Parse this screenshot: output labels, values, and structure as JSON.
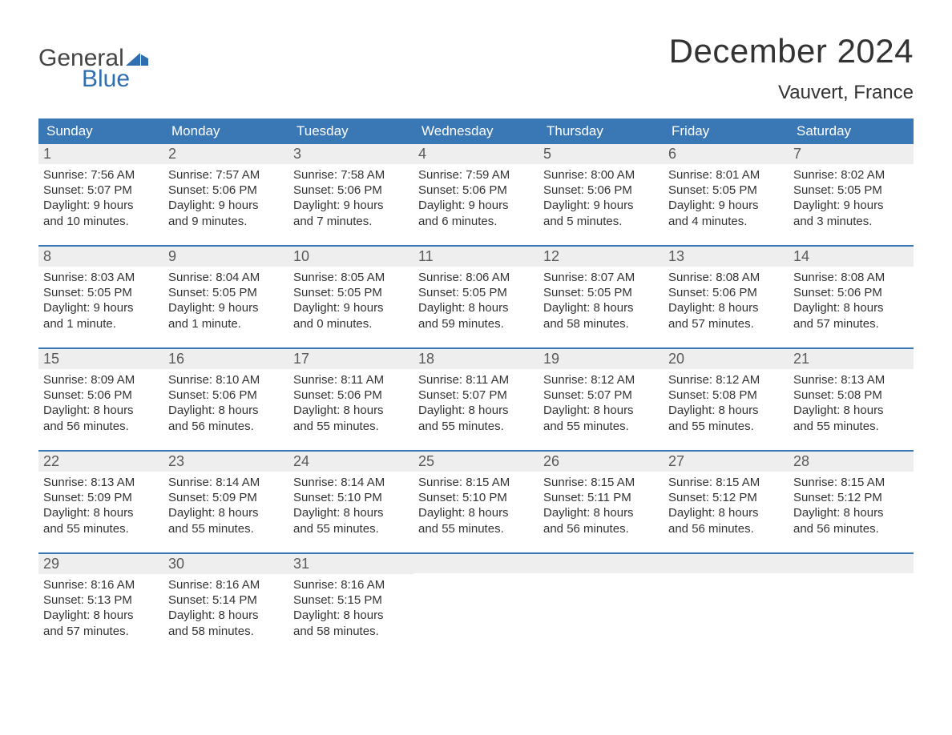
{
  "brand": {
    "word1": "General",
    "word2": "Blue",
    "mark_color": "#2f6fb0",
    "text_color_top": "#444444",
    "text_color_bottom": "#2f6fb0"
  },
  "title": "December 2024",
  "location": "Vauvert, France",
  "colors": {
    "header_bg": "#3a77b5",
    "header_text": "#ffffff",
    "week_divider": "#3a77b5",
    "daynum_bg": "#eeeeee",
    "daynum_text": "#5a5a5a",
    "body_text": "#333333",
    "page_bg": "#ffffff"
  },
  "typography": {
    "title_fontsize": 42,
    "location_fontsize": 24,
    "dayhead_fontsize": 17,
    "daynum_fontsize": 18,
    "body_fontsize": 15,
    "logo_fontsize": 30
  },
  "layout": {
    "columns": 7,
    "rows": 5,
    "cell_min_height": 112
  },
  "day_headers": [
    "Sunday",
    "Monday",
    "Tuesday",
    "Wednesday",
    "Thursday",
    "Friday",
    "Saturday"
  ],
  "weeks": [
    [
      {
        "num": "1",
        "sunrise": "7:56 AM",
        "sunset": "5:07 PM",
        "daylight": "9 hours\nand 10 minutes."
      },
      {
        "num": "2",
        "sunrise": "7:57 AM",
        "sunset": "5:06 PM",
        "daylight": "9 hours\nand 9 minutes."
      },
      {
        "num": "3",
        "sunrise": "7:58 AM",
        "sunset": "5:06 PM",
        "daylight": "9 hours\nand 7 minutes."
      },
      {
        "num": "4",
        "sunrise": "7:59 AM",
        "sunset": "5:06 PM",
        "daylight": "9 hours\nand 6 minutes."
      },
      {
        "num": "5",
        "sunrise": "8:00 AM",
        "sunset": "5:06 PM",
        "daylight": "9 hours\nand 5 minutes."
      },
      {
        "num": "6",
        "sunrise": "8:01 AM",
        "sunset": "5:05 PM",
        "daylight": "9 hours\nand 4 minutes."
      },
      {
        "num": "7",
        "sunrise": "8:02 AM",
        "sunset": "5:05 PM",
        "daylight": "9 hours\nand 3 minutes."
      }
    ],
    [
      {
        "num": "8",
        "sunrise": "8:03 AM",
        "sunset": "5:05 PM",
        "daylight": "9 hours\nand 1 minute."
      },
      {
        "num": "9",
        "sunrise": "8:04 AM",
        "sunset": "5:05 PM",
        "daylight": "9 hours\nand 1 minute."
      },
      {
        "num": "10",
        "sunrise": "8:05 AM",
        "sunset": "5:05 PM",
        "daylight": "9 hours\nand 0 minutes."
      },
      {
        "num": "11",
        "sunrise": "8:06 AM",
        "sunset": "5:05 PM",
        "daylight": "8 hours\nand 59 minutes."
      },
      {
        "num": "12",
        "sunrise": "8:07 AM",
        "sunset": "5:05 PM",
        "daylight": "8 hours\nand 58 minutes."
      },
      {
        "num": "13",
        "sunrise": "8:08 AM",
        "sunset": "5:06 PM",
        "daylight": "8 hours\nand 57 minutes."
      },
      {
        "num": "14",
        "sunrise": "8:08 AM",
        "sunset": "5:06 PM",
        "daylight": "8 hours\nand 57 minutes."
      }
    ],
    [
      {
        "num": "15",
        "sunrise": "8:09 AM",
        "sunset": "5:06 PM",
        "daylight": "8 hours\nand 56 minutes."
      },
      {
        "num": "16",
        "sunrise": "8:10 AM",
        "sunset": "5:06 PM",
        "daylight": "8 hours\nand 56 minutes."
      },
      {
        "num": "17",
        "sunrise": "8:11 AM",
        "sunset": "5:06 PM",
        "daylight": "8 hours\nand 55 minutes."
      },
      {
        "num": "18",
        "sunrise": "8:11 AM",
        "sunset": "5:07 PM",
        "daylight": "8 hours\nand 55 minutes."
      },
      {
        "num": "19",
        "sunrise": "8:12 AM",
        "sunset": "5:07 PM",
        "daylight": "8 hours\nand 55 minutes."
      },
      {
        "num": "20",
        "sunrise": "8:12 AM",
        "sunset": "5:08 PM",
        "daylight": "8 hours\nand 55 minutes."
      },
      {
        "num": "21",
        "sunrise": "8:13 AM",
        "sunset": "5:08 PM",
        "daylight": "8 hours\nand 55 minutes."
      }
    ],
    [
      {
        "num": "22",
        "sunrise": "8:13 AM",
        "sunset": "5:09 PM",
        "daylight": "8 hours\nand 55 minutes."
      },
      {
        "num": "23",
        "sunrise": "8:14 AM",
        "sunset": "5:09 PM",
        "daylight": "8 hours\nand 55 minutes."
      },
      {
        "num": "24",
        "sunrise": "8:14 AM",
        "sunset": "5:10 PM",
        "daylight": "8 hours\nand 55 minutes."
      },
      {
        "num": "25",
        "sunrise": "8:15 AM",
        "sunset": "5:10 PM",
        "daylight": "8 hours\nand 55 minutes."
      },
      {
        "num": "26",
        "sunrise": "8:15 AM",
        "sunset": "5:11 PM",
        "daylight": "8 hours\nand 56 minutes."
      },
      {
        "num": "27",
        "sunrise": "8:15 AM",
        "sunset": "5:12 PM",
        "daylight": "8 hours\nand 56 minutes."
      },
      {
        "num": "28",
        "sunrise": "8:15 AM",
        "sunset": "5:12 PM",
        "daylight": "8 hours\nand 56 minutes."
      }
    ],
    [
      {
        "num": "29",
        "sunrise": "8:16 AM",
        "sunset": "5:13 PM",
        "daylight": "8 hours\nand 57 minutes."
      },
      {
        "num": "30",
        "sunrise": "8:16 AM",
        "sunset": "5:14 PM",
        "daylight": "8 hours\nand 58 minutes."
      },
      {
        "num": "31",
        "sunrise": "8:16 AM",
        "sunset": "5:15 PM",
        "daylight": "8 hours\nand 58 minutes."
      },
      {
        "empty": true
      },
      {
        "empty": true
      },
      {
        "empty": true
      },
      {
        "empty": true
      }
    ]
  ],
  "labels": {
    "sunrise": "Sunrise: ",
    "sunset": "Sunset: ",
    "daylight": "Daylight: "
  }
}
